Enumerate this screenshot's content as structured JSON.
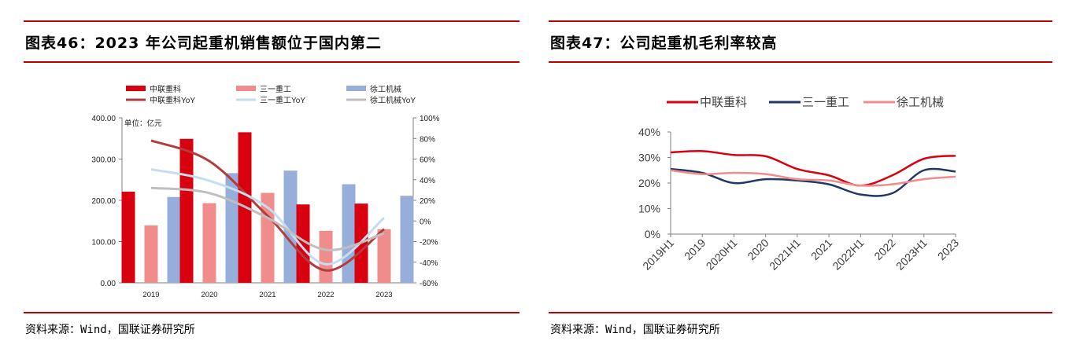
{
  "left": {
    "title": "图表46：2023 年公司起重机销售额位于国内第二",
    "source": "资料来源：Wind，国联证券研究所",
    "chart_data": {
      "type": "bar",
      "unit_label": "单位：亿元",
      "categories": [
        "2019",
        "2020",
        "2021",
        "2022",
        "2023"
      ],
      "ylim_left": [
        0,
        400
      ],
      "yticks_left": [
        "0.00",
        "100.00",
        "200.00",
        "300.00",
        "400.00"
      ],
      "ylim_right": [
        -60,
        100
      ],
      "yticks_right": [
        "-60%",
        "-40%",
        "-20%",
        "0%",
        "20%",
        "40%",
        "60%",
        "80%",
        "100%"
      ],
      "bar_series": [
        {
          "name": "中联重科",
          "color": "#d9000f",
          "values": [
            221,
            349,
            365,
            190,
            192
          ]
        },
        {
          "name": "三一重工",
          "color": "#f08c8c",
          "values": [
            139,
            193,
            218,
            126,
            130
          ]
        },
        {
          "name": "徐工机械",
          "color": "#97aedb",
          "values": [
            208,
            266,
            272,
            239,
            211
          ]
        }
      ],
      "line_series": [
        {
          "name": "中联重科YoY",
          "color": "#b43c3c",
          "values": [
            78,
            58,
            5,
            -48,
            -8
          ]
        },
        {
          "name": "三一重工YoY",
          "color": "#c6dcf0",
          "values": [
            50,
            39,
            13,
            -42,
            3
          ]
        },
        {
          "name": "徐工机械YoY",
          "color": "#bfbfbf",
          "values": [
            32,
            27,
            3,
            -28,
            -12
          ]
        }
      ],
      "grid": false,
      "legend": "top"
    }
  },
  "right": {
    "title": "图表47：公司起重机毛利率较高",
    "source": "资料来源：Wind，国联证券研究所",
    "chart_data": {
      "type": "line",
      "categories": [
        "2019H1",
        "2019",
        "2020H1",
        "2020",
        "2021H1",
        "2021",
        "2022H1",
        "2022",
        "2023H1",
        "2023"
      ],
      "ylim": [
        0,
        40
      ],
      "yticks": [
        "0%",
        "10%",
        "20%",
        "30%",
        "40%"
      ],
      "series": [
        {
          "name": "中联重科",
          "color": "#d9000f",
          "values": [
            32,
            32.5,
            31,
            30.5,
            25.5,
            23,
            19,
            23,
            29.5,
            30.7
          ]
        },
        {
          "name": "三一重工",
          "color": "#1f3864",
          "values": [
            25.5,
            24,
            20,
            21.5,
            21,
            19.5,
            15.5,
            16,
            25,
            24.5
          ]
        },
        {
          "name": "徐工机械",
          "color": "#f08c8c",
          "values": [
            25,
            23.5,
            24,
            23.5,
            21.5,
            21,
            19,
            19.5,
            21.5,
            22.5
          ]
        }
      ],
      "grid": false,
      "legend": "top"
    }
  }
}
